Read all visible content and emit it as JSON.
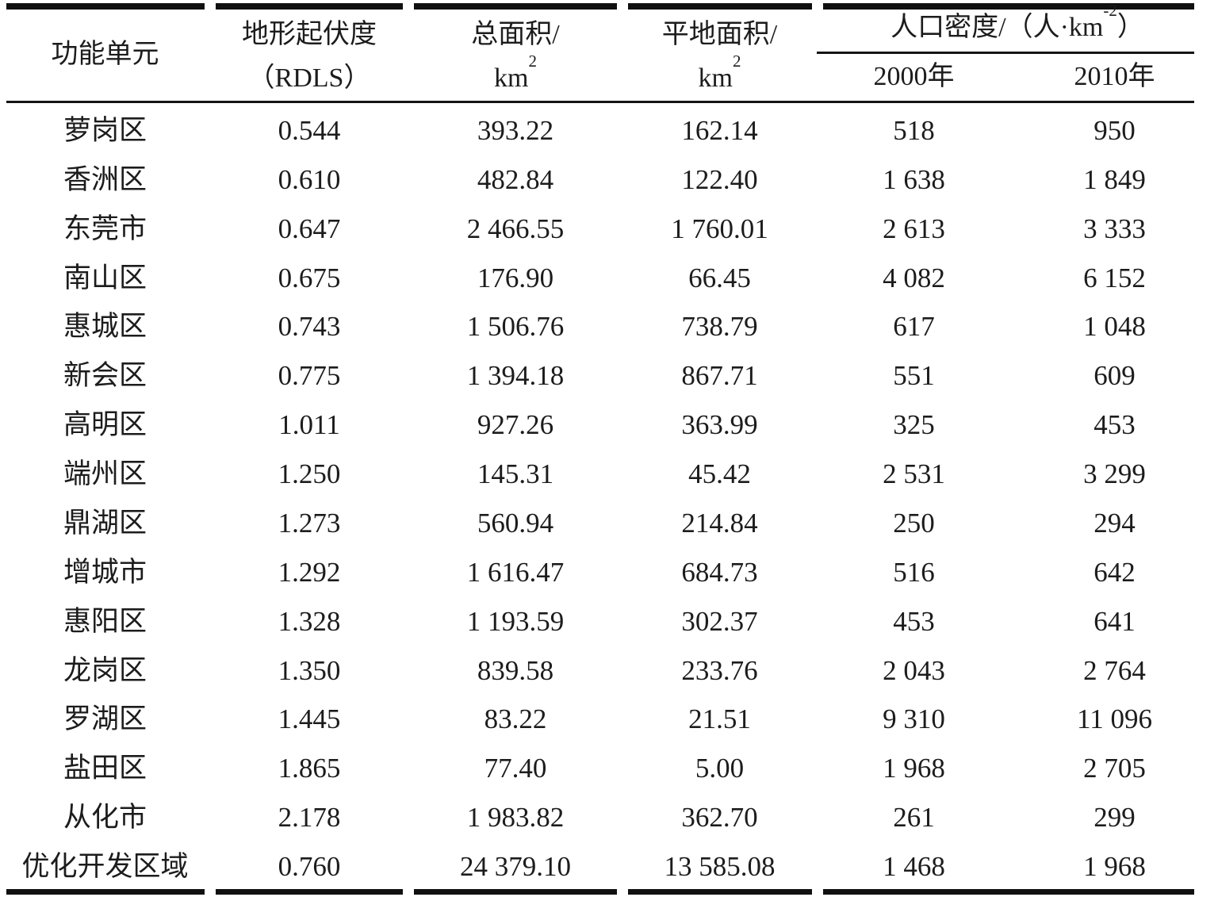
{
  "table": {
    "header": {
      "unit": "功能单元",
      "rdls_line1": "地形起伏度",
      "rdls_line2": "（RDLS）",
      "total_area_line1": "总面积/",
      "total_area_unit_base": "km",
      "total_area_unit_sup": "2",
      "flat_area_line1": "平地面积/",
      "flat_area_unit_base": "km",
      "flat_area_unit_sup": "2",
      "pop_density_prefix": "人口密度/（人·km",
      "pop_density_sup": "-2",
      "pop_density_suffix": "）",
      "year_2000": "2000年",
      "year_2010": "2010年"
    },
    "rows": [
      {
        "unit": "萝岗区",
        "rdls": "0.544",
        "total_area": "393.22",
        "flat_area": "162.14",
        "pop_2000": "518",
        "pop_2010": "950"
      },
      {
        "unit": "香洲区",
        "rdls": "0.610",
        "total_area": "482.84",
        "flat_area": "122.40",
        "pop_2000": "1 638",
        "pop_2010": "1 849"
      },
      {
        "unit": "东莞市",
        "rdls": "0.647",
        "total_area": "2 466.55",
        "flat_area": "1 760.01",
        "pop_2000": "2 613",
        "pop_2010": "3 333"
      },
      {
        "unit": "南山区",
        "rdls": "0.675",
        "total_area": "176.90",
        "flat_area": "66.45",
        "pop_2000": "4 082",
        "pop_2010": "6 152"
      },
      {
        "unit": "惠城区",
        "rdls": "0.743",
        "total_area": "1 506.76",
        "flat_area": "738.79",
        "pop_2000": "617",
        "pop_2010": "1 048"
      },
      {
        "unit": "新会区",
        "rdls": "0.775",
        "total_area": "1 394.18",
        "flat_area": "867.71",
        "pop_2000": "551",
        "pop_2010": "609"
      },
      {
        "unit": "高明区",
        "rdls": "1.011",
        "total_area": "927.26",
        "flat_area": "363.99",
        "pop_2000": "325",
        "pop_2010": "453"
      },
      {
        "unit": "端州区",
        "rdls": "1.250",
        "total_area": "145.31",
        "flat_area": "45.42",
        "pop_2000": "2 531",
        "pop_2010": "3 299"
      },
      {
        "unit": "鼎湖区",
        "rdls": "1.273",
        "total_area": "560.94",
        "flat_area": "214.84",
        "pop_2000": "250",
        "pop_2010": "294"
      },
      {
        "unit": "增城市",
        "rdls": "1.292",
        "total_area": "1 616.47",
        "flat_area": "684.73",
        "pop_2000": "516",
        "pop_2010": "642"
      },
      {
        "unit": "惠阳区",
        "rdls": "1.328",
        "total_area": "1 193.59",
        "flat_area": "302.37",
        "pop_2000": "453",
        "pop_2010": "641"
      },
      {
        "unit": "龙岗区",
        "rdls": "1.350",
        "total_area": "839.58",
        "flat_area": "233.76",
        "pop_2000": "2 043",
        "pop_2010": "2 764"
      },
      {
        "unit": "罗湖区",
        "rdls": "1.445",
        "total_area": "83.22",
        "flat_area": "21.51",
        "pop_2000": "9 310",
        "pop_2010": "11 096"
      },
      {
        "unit": "盐田区",
        "rdls": "1.865",
        "total_area": "77.40",
        "flat_area": "5.00",
        "pop_2000": "1 968",
        "pop_2010": "2 705"
      },
      {
        "unit": "从化市",
        "rdls": "2.178",
        "total_area": "1 983.82",
        "flat_area": "362.70",
        "pop_2000": "261",
        "pop_2010": "299"
      },
      {
        "unit": "优化开发区域",
        "rdls": "0.760",
        "total_area": "24 379.10",
        "flat_area": "13 585.08",
        "pop_2000": "1 468",
        "pop_2010": "1 968"
      }
    ]
  },
  "colors": {
    "background": "#ffffff",
    "text": "#1c1c1c",
    "rule": "#101010"
  }
}
